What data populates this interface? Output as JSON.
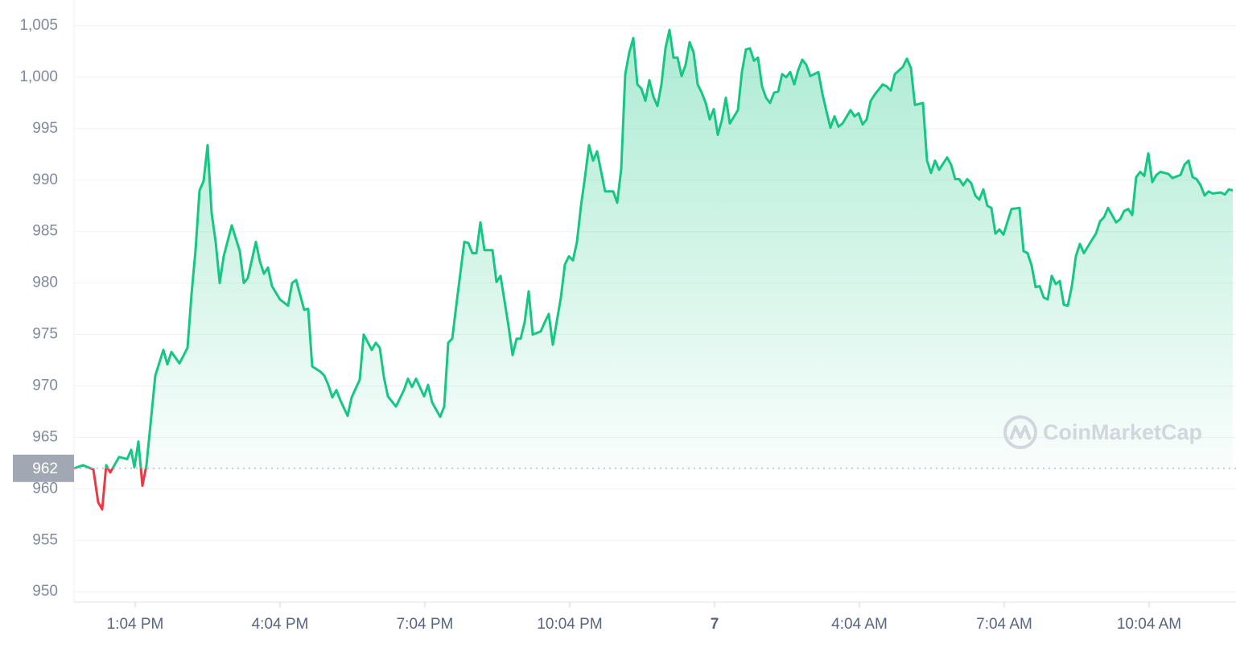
{
  "chart_data": {
    "type": "line",
    "color": "#16c784",
    "down_color": "#ea3943",
    "baseline": 962,
    "grid": true,
    "watermark": "CoinMarketCap",
    "xlim": [
      708,
      2148
    ],
    "ylim": [
      949,
      1007.5
    ],
    "xticks": [
      {
        "value": 784,
        "label": "1:04 PM"
      },
      {
        "value": 964,
        "label": "4:04 PM"
      },
      {
        "value": 1144,
        "label": "7:04 PM"
      },
      {
        "value": 1324,
        "label": "10:04 PM"
      },
      {
        "value": 1504,
        "label": "7"
      },
      {
        "value": 1684,
        "label": "4:04 AM"
      },
      {
        "value": 1864,
        "label": "7:04 AM"
      },
      {
        "value": 2044,
        "label": "10:04 AM"
      }
    ],
    "yticks": [
      950,
      955,
      960,
      965,
      970,
      975,
      980,
      985,
      990,
      995,
      {
        "value": 1000,
        "label": "1,000"
      },
      {
        "value": 1005,
        "label": "1,005"
      }
    ],
    "x": [
      708,
      719,
      732,
      738,
      743,
      748,
      753,
      764,
      774,
      779,
      783,
      788,
      793,
      798,
      809,
      819,
      824,
      829,
      839,
      849,
      854,
      859,
      864,
      869,
      874,
      879,
      884,
      889,
      894,
      904,
      914,
      919,
      924,
      934,
      939,
      944,
      949,
      954,
      964,
      974,
      979,
      984,
      994,
      999,
      1004,
      1014,
      1019,
      1024,
      1029,
      1034,
      1039,
      1048,
      1053,
      1063,
      1068,
      1078,
      1083,
      1088,
      1093,
      1098,
      1108,
      1118,
      1123,
      1128,
      1133,
      1143,
      1148,
      1153,
      1163,
      1168,
      1173,
      1178,
      1183,
      1188,
      1193,
      1198,
      1203,
      1208,
      1213,
      1218,
      1228,
      1233,
      1238,
      1248,
      1253,
      1258,
      1263,
      1268,
      1273,
      1278,
      1288,
      1293,
      1298,
      1303,
      1313,
      1318,
      1323,
      1328,
      1333,
      1338,
      1343,
      1348,
      1353,
      1358,
      1368,
      1378,
      1383,
      1388,
      1393,
      1398,
      1403,
      1408,
      1413,
      1418,
      1423,
      1428,
      1433,
      1438,
      1443,
      1448,
      1453,
      1458,
      1463,
      1468,
      1473,
      1478,
      1483,
      1488,
      1493,
      1498,
      1503,
      1508,
      1513,
      1518,
      1523,
      1533,
      1538,
      1543,
      1548,
      1553,
      1558,
      1563,
      1568,
      1573,
      1578,
      1583,
      1588,
      1593,
      1598,
      1603,
      1608,
      1613,
      1618,
      1623,
      1633,
      1638,
      1643,
      1648,
      1653,
      1658,
      1663,
      1673,
      1678,
      1683,
      1688,
      1693,
      1698,
      1703,
      1713,
      1718,
      1723,
      1728,
      1738,
      1743,
      1748,
      1753,
      1763,
      1768,
      1773,
      1778,
      1783,
      1793,
      1798,
      1803,
      1808,
      1813,
      1818,
      1823,
      1828,
      1833,
      1838,
      1843,
      1848,
      1853,
      1858,
      1863,
      1873,
      1883,
      1888,
      1893,
      1898,
      1903,
      1908,
      1913,
      1918,
      1923,
      1928,
      1933,
      1938,
      1943,
      1948,
      1953,
      1958,
      1963,
      1973,
      1978,
      1983,
      1988,
      1993,
      2003,
      2008,
      2013,
      2018,
      2023,
      2028,
      2033,
      2038,
      2043,
      2048,
      2053,
      2058,
      2068,
      2073,
      2083,
      2088,
      2093,
      2098,
      2103,
      2108,
      2113,
      2118,
      2123,
      2133,
      2138,
      2143,
      2148
    ],
    "values": [
      962.0,
      962.3,
      961.9,
      958.7,
      958.0,
      962.3,
      961.6,
      963.1,
      962.9,
      963.8,
      962.1,
      964.6,
      960.3,
      962.3,
      971.0,
      973.5,
      972.1,
      973.3,
      972.2,
      973.7,
      978.9,
      983.2,
      989.0,
      989.9,
      993.4,
      986.8,
      984.0,
      980.0,
      982.6,
      985.6,
      983.1,
      980.0,
      980.5,
      984.0,
      982.1,
      980.9,
      981.5,
      979.7,
      978.4,
      977.8,
      980.0,
      980.3,
      977.4,
      977.5,
      971.9,
      971.4,
      971.0,
      970.1,
      968.9,
      969.6,
      968.6,
      967.1,
      968.9,
      970.6,
      975.0,
      973.5,
      974.2,
      973.7,
      970.9,
      969.0,
      968.0,
      969.6,
      970.7,
      969.9,
      970.7,
      969.0,
      970.1,
      968.4,
      967.0,
      968.0,
      974.2,
      974.6,
      977.8,
      980.9,
      984.0,
      983.9,
      982.9,
      982.9,
      985.9,
      983.2,
      983.2,
      980.1,
      980.7,
      975.8,
      973.0,
      974.6,
      974.6,
      976.2,
      979.2,
      975.0,
      975.3,
      976.2,
      977.0,
      974.0,
      978.6,
      981.8,
      982.6,
      982.2,
      984.0,
      987.5,
      990.3,
      993.4,
      991.9,
      992.8,
      988.9,
      988.9,
      987.8,
      991.1,
      1000.3,
      1002.4,
      1003.8,
      999.3,
      998.9,
      997.7,
      999.7,
      998.1,
      997.2,
      999.3,
      1002.8,
      1004.6,
      1001.9,
      1001.9,
      1000.1,
      1001.2,
      1003.4,
      1002.4,
      999.3,
      998.5,
      997.5,
      995.9,
      996.9,
      994.4,
      995.8,
      998.0,
      995.5,
      996.8,
      1000.5,
      1002.7,
      1002.8,
      1001.6,
      1001.9,
      999.1,
      998.0,
      997.5,
      998.5,
      998.6,
      1000.3,
      1000.0,
      1000.5,
      999.3,
      1000.7,
      1001.7,
      1001.2,
      1000.1,
      1000.5,
      998.4,
      996.7,
      995.1,
      996.2,
      995.2,
      995.5,
      996.8,
      996.2,
      996.5,
      995.4,
      995.9,
      997.7,
      998.3,
      999.3,
      999.1,
      998.7,
      1000.3,
      1001.0,
      1001.8,
      1000.9,
      997.3,
      997.5,
      991.9,
      990.7,
      991.9,
      991.0,
      992.2,
      991.5,
      990.1,
      990.1,
      989.5,
      990.1,
      989.7,
      988.5,
      988.1,
      989.1,
      987.5,
      987.3,
      984.8,
      985.2,
      984.7,
      987.2,
      987.3,
      983.1,
      982.9,
      981.7,
      979.6,
      979.7,
      978.6,
      978.4,
      980.7,
      979.9,
      980.2,
      977.9,
      977.8,
      979.7,
      982.6,
      983.8,
      982.9,
      984.2,
      984.8,
      986.0,
      986.4,
      987.3,
      985.9,
      986.2,
      987.0,
      987.2,
      986.6,
      990.3,
      990.8,
      990.4,
      992.6,
      989.8,
      990.5,
      990.8,
      990.6,
      990.2,
      990.5,
      991.5,
      991.9,
      990.3,
      990.1,
      989.5,
      988.5,
      988.9,
      988.7,
      988.8,
      988.6,
      989.1,
      989.0
    ]
  }
}
